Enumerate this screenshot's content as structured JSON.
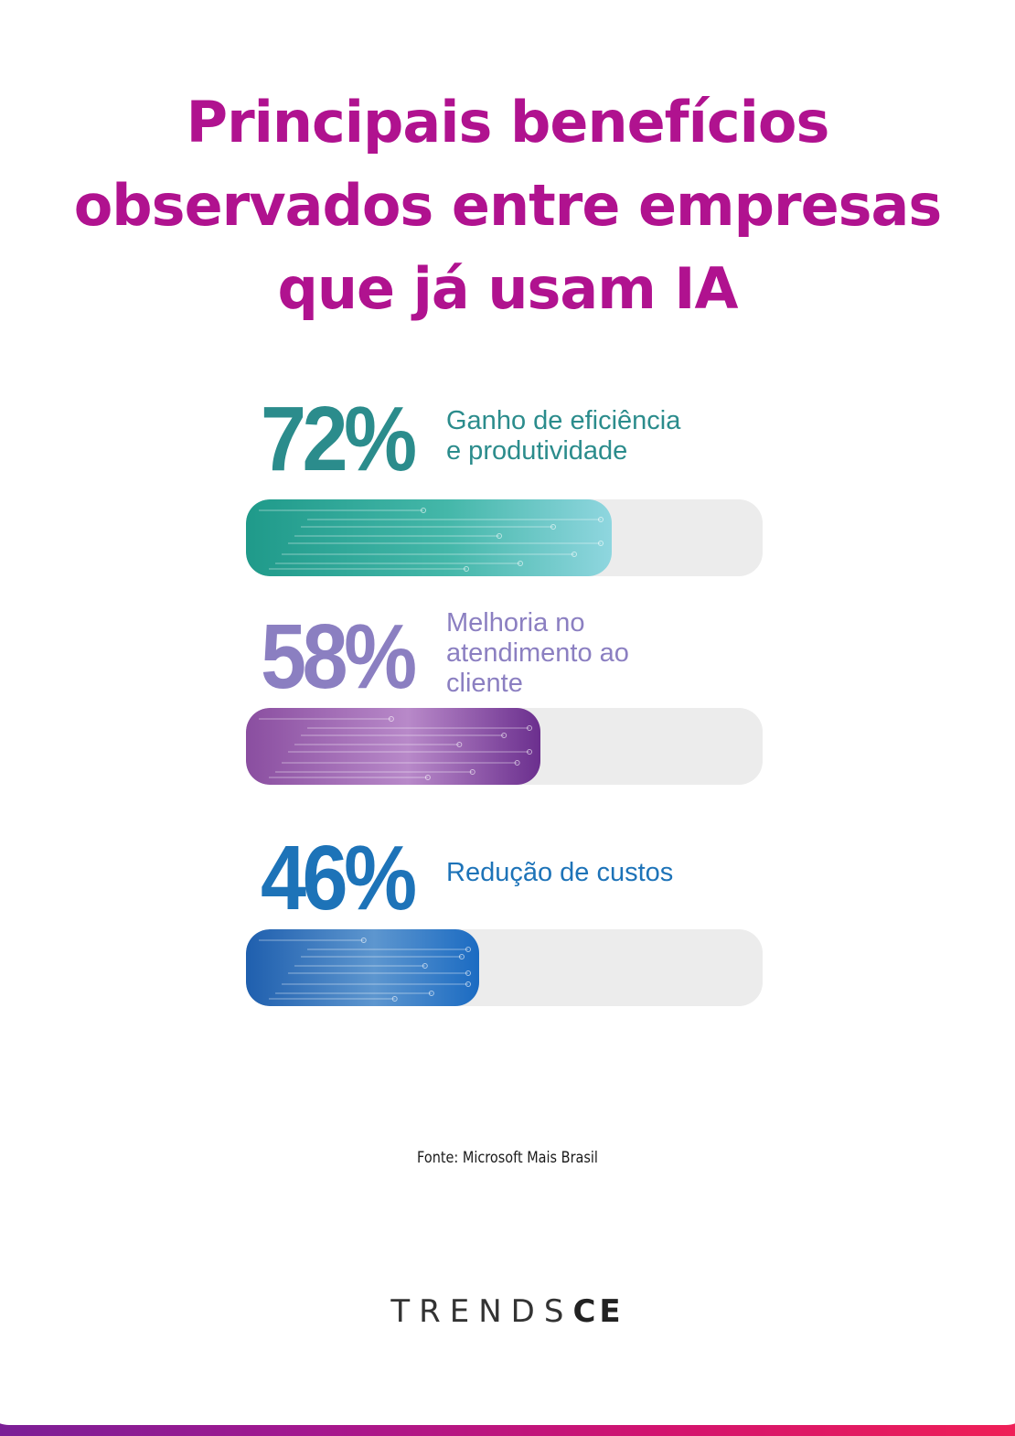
{
  "title": {
    "line1": "Principais benefícios",
    "line2": "observados entre empresas",
    "line3": "que já usam IA"
  },
  "chart_data": {
    "type": "bar",
    "orientation": "horizontal",
    "unit": "%",
    "ylim": [
      0,
      100
    ],
    "categories": [
      "Ganho de eficiência e produtividade",
      "Melhoria no atendimento ao cliente",
      "Redução de custos"
    ],
    "values": [
      72,
      58,
      46
    ],
    "items": [
      {
        "value_label": "72%",
        "label": "Ganho de eficiência\ne produtividade",
        "value": 72,
        "color": "#2b8c8c",
        "bar_colors": [
          "#1f9a8a",
          "#44b7a9",
          "#8fd6df"
        ]
      },
      {
        "value_label": "58%",
        "label": "Melhoria no\natendimento ao\ncliente",
        "value": 58,
        "color": "#8b7fc1",
        "bar_colors": [
          "#8a4ea0",
          "#b889c9",
          "#6b2f8e"
        ]
      },
      {
        "value_label": "46%",
        "label": "Redução de custos",
        "value": 46,
        "color": "#1d73b8",
        "bar_colors": [
          "#1f5fae",
          "#5d96cf",
          "#1b6bc2"
        ]
      }
    ],
    "track_color": "#ececec"
  },
  "source": "Fonte: Microsoft Mais Brasil",
  "logo": {
    "light": "TRENDS",
    "bold": "CE"
  },
  "colors": {
    "title": "#b0128f",
    "bottom_band_start": "#7b1f96",
    "bottom_band_end": "#ef1f57"
  }
}
